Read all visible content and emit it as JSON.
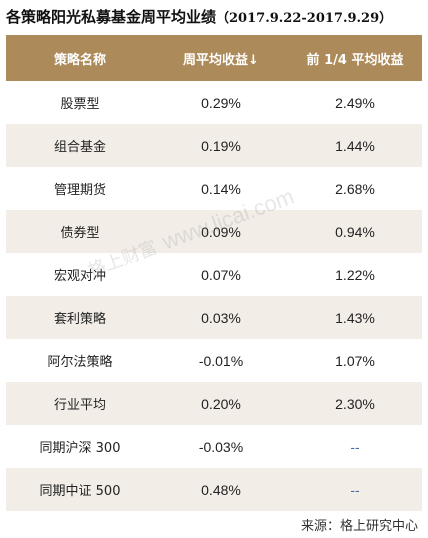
{
  "title": {
    "main": "各策略阳光私募基金周平均业绩",
    "range": "（2017.9.22-2017.9.29）"
  },
  "table": {
    "headers": [
      "策略名称",
      "周平均收益↓",
      "前 1/4 平均收益"
    ],
    "rows": [
      {
        "name": "股票型",
        "weekly": "0.29%",
        "top_quarter": "2.49%"
      },
      {
        "name": "组合基金",
        "weekly": "0.19%",
        "top_quarter": "1.44%"
      },
      {
        "name": "管理期货",
        "weekly": "0.14%",
        "top_quarter": "2.68%"
      },
      {
        "name": "债券型",
        "weekly": "0.09%",
        "top_quarter": "0.94%"
      },
      {
        "name": "宏观对冲",
        "weekly": "0.07%",
        "top_quarter": "1.22%"
      },
      {
        "name": "套利策略",
        "weekly": "0.03%",
        "top_quarter": "1.43%"
      },
      {
        "name": "阿尔法策略",
        "weekly": "-0.01%",
        "top_quarter": "1.07%"
      },
      {
        "name": "行业平均",
        "weekly": "0.20%",
        "top_quarter": "2.30%"
      },
      {
        "name": "同期沪深 300",
        "weekly": "-0.03%",
        "top_quarter": "--"
      },
      {
        "name": "同期中证 500",
        "weekly": "0.48%",
        "top_quarter": "--"
      }
    ]
  },
  "watermark": {
    "cn": "格上财富",
    "url": "www.licai.com"
  },
  "source": "来源：格上研究中心",
  "colors": {
    "header_bg": "#ad8a5a",
    "stripe_bg": "#f2ede7",
    "dash": "#4a6fa5"
  }
}
